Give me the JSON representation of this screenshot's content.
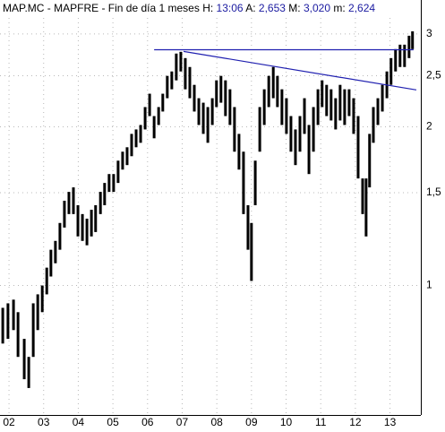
{
  "chart_data": {
    "type": "range",
    "title": "MAP.MC - MAPFRE - Fin de día 1 meses",
    "header_fields": [
      {
        "label": "H:",
        "value": "13:06"
      },
      {
        "label": "A:",
        "value": "2,653"
      },
      {
        "label": "M:",
        "value": "3,020"
      },
      {
        "label": "m:",
        "value": "2,624"
      }
    ],
    "log_scale": true,
    "grid": true,
    "color": "#000000",
    "xlim": [
      2001.74,
      2013.89
    ],
    "xticks": [
      {
        "value": 2002,
        "label": "02"
      },
      {
        "value": 2003,
        "label": "03"
      },
      {
        "value": 2004,
        "label": "04"
      },
      {
        "value": 2005,
        "label": "05"
      },
      {
        "value": 2006,
        "label": "06"
      },
      {
        "value": 2007,
        "label": "07"
      },
      {
        "value": 2008,
        "label": "08"
      },
      {
        "value": 2009,
        "label": "09"
      },
      {
        "value": 2010,
        "label": "10"
      },
      {
        "value": 2011,
        "label": "11"
      },
      {
        "value": 2012,
        "label": "12"
      },
      {
        "value": 2013,
        "label": "13"
      }
    ],
    "ylim": [
      0.568,
      3.48
    ],
    "yticks": [
      1,
      {
        "value": 1.5,
        "label": "1,5"
      },
      2,
      {
        "value": 2.5,
        "label": "2,5"
      },
      3
    ],
    "x": [
      2001.82,
      2001.97,
      2002.13,
      2002.26,
      2002.44,
      2002.57,
      2002.7,
      2002.83,
      2002.96,
      2003.09,
      2003.21,
      2003.34,
      2003.47,
      2003.6,
      2003.73,
      2003.86,
      2003.99,
      2004.12,
      2004.25,
      2004.38,
      2004.5,
      2004.64,
      2004.76,
      2004.89,
      2005.02,
      2005.15,
      2005.28,
      2005.41,
      2005.54,
      2005.67,
      2005.8,
      2005.93,
      2006.06,
      2006.19,
      2006.32,
      2006.44,
      2006.57,
      2006.7,
      2006.83,
      2006.96,
      2007.09,
      2007.22,
      2007.35,
      2007.48,
      2007.61,
      2007.74,
      2007.87,
      2007.99,
      2008.12,
      2008.25,
      2008.38,
      2008.51,
      2008.64,
      2008.77,
      2008.9,
      2009.0,
      2009.11,
      2009.24,
      2009.37,
      2009.5,
      2009.63,
      2009.75,
      2009.88,
      2010.01,
      2010.14,
      2010.27,
      2010.4,
      2010.53,
      2010.66,
      2010.79,
      2010.92,
      2011.04,
      2011.17,
      2011.3,
      2011.43,
      2011.56,
      2011.69,
      2011.82,
      2011.95,
      2012.08,
      2012.21,
      2012.31,
      2012.41,
      2012.52,
      2012.65,
      2012.78,
      2012.91,
      2013.03,
      2013.16,
      2013.29,
      2013.42,
      2013.55,
      2013.65
    ],
    "low": [
      0.776,
      0.792,
      0.823,
      0.732,
      0.664,
      0.639,
      0.732,
      0.823,
      0.89,
      0.962,
      1.04,
      1.102,
      1.169,
      1.288,
      1.366,
      1.366,
      1.239,
      1.215,
      1.192,
      1.239,
      1.263,
      1.366,
      1.42,
      1.505,
      1.505,
      1.565,
      1.659,
      1.692,
      1.759,
      1.829,
      1.865,
      1.977,
      2.096,
      1.902,
      2.016,
      2.138,
      2.266,
      2.356,
      2.45,
      2.547,
      2.356,
      2.266,
      2.138,
      2.016,
      1.939,
      1.865,
      2.016,
      2.18,
      2.222,
      2.096,
      2.016,
      1.794,
      1.659,
      1.366,
      1.169,
      1.02,
      1.42,
      1.794,
      2.016,
      2.18,
      2.266,
      2.18,
      2.016,
      1.939,
      1.794,
      1.692,
      1.794,
      1.939,
      1.627,
      1.794,
      2.016,
      2.18,
      2.096,
      2.056,
      1.977,
      2.056,
      2.016,
      2.096,
      1.939,
      1.596,
      1.366,
      1.239,
      1.535,
      1.865,
      2.016,
      2.138,
      2.266,
      2.402,
      2.547,
      2.597,
      2.597,
      2.7,
      2.808
    ],
    "high": [
      0.907,
      0.925,
      0.94,
      0.89,
      0.792,
      0.732,
      0.925,
      0.962,
      1.0,
      1.081,
      1.169,
      1.215,
      1.314,
      1.448,
      1.505,
      1.535,
      1.42,
      1.366,
      1.339,
      1.392,
      1.42,
      1.505,
      1.565,
      1.627,
      1.627,
      1.725,
      1.794,
      1.829,
      1.939,
      1.977,
      2.016,
      2.18,
      2.311,
      2.096,
      2.18,
      2.311,
      2.498,
      2.547,
      2.754,
      2.775,
      2.7,
      2.597,
      2.402,
      2.266,
      2.222,
      2.18,
      2.266,
      2.45,
      2.498,
      2.45,
      2.356,
      2.18,
      1.939,
      1.794,
      1.42,
      1.314,
      1.725,
      2.18,
      2.356,
      2.498,
      2.597,
      2.498,
      2.356,
      2.266,
      2.096,
      1.977,
      2.096,
      2.266,
      2.016,
      2.18,
      2.356,
      2.45,
      2.402,
      2.356,
      2.266,
      2.402,
      2.356,
      2.356,
      2.266,
      2.096,
      1.596,
      1.596,
      1.939,
      2.18,
      2.266,
      2.402,
      2.547,
      2.7,
      2.808,
      2.863,
      2.863,
      2.977,
      3.035
    ],
    "lines": [
      {
        "color": "#2020b0",
        "x": [
          2006.19,
          2013.68
        ],
        "y": [
          2.8,
          2.8
        ]
      },
      {
        "color": "#2020b0",
        "x": [
          2007.04,
          2013.76
        ],
        "y": [
          2.78,
          2.35
        ]
      }
    ]
  }
}
